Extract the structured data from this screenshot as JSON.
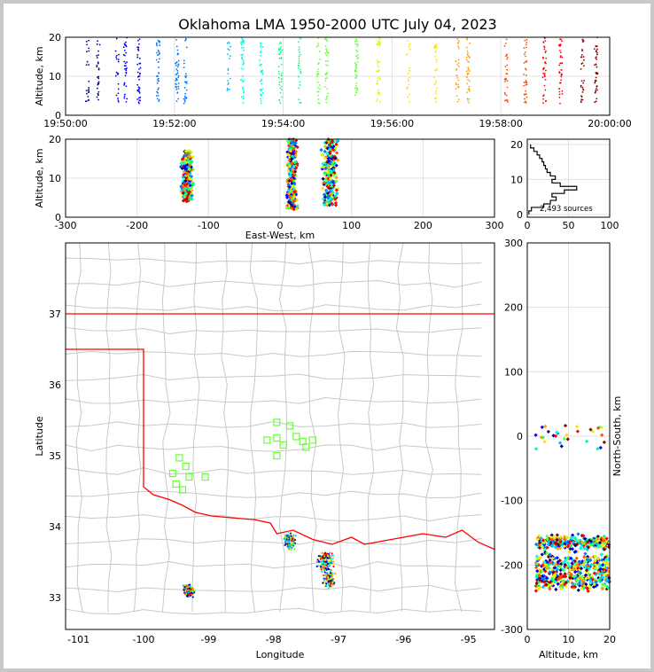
{
  "title": "Oklahoma LMA 1950-2000 UTC July 04, 2023",
  "colors": {
    "time_scale": [
      "#00008b",
      "#0000ff",
      "#0077ff",
      "#00bfff",
      "#00ffe0",
      "#00ff80",
      "#66ff33",
      "#c8ff00",
      "#ffe000",
      "#ffa000",
      "#ff5000",
      "#ff0000",
      "#8b0000"
    ],
    "state_border": "#ff0000",
    "county_lines": "#c8c8c8",
    "station_marker": "#66ff33",
    "grid": "#e0e0e0"
  },
  "chart_data": [
    {
      "panel": "altitude-time",
      "type": "scatter",
      "xlabel": "",
      "ylabel": "Altitude, km",
      "ylim": [
        0,
        20
      ],
      "yticks": [
        "0",
        "10",
        "20"
      ],
      "xticks": [
        "19:50:00",
        "19:52:00",
        "19:54:00",
        "19:56:00",
        "19:58:00",
        "20:00:00"
      ],
      "series": [
        {
          "x_minutes": [
            0.4,
            0.6,
            0.95,
            1.1,
            1.35,
            1.7,
            2.05,
            2.2,
            3.0,
            3.25,
            3.6,
            3.95,
            4.3,
            4.65,
            4.8,
            5.35,
            5.75,
            6.3,
            6.8,
            7.2,
            7.4,
            8.1,
            8.45,
            8.8,
            9.1,
            9.5,
            9.75
          ],
          "y_range_km": [
            3,
            20
          ]
        }
      ]
    },
    {
      "panel": "altitude-eastwest",
      "type": "scatter",
      "xlabel": "East-West, km",
      "ylabel": "Altitude, km",
      "xlim": [
        -300,
        300
      ],
      "ylim": [
        0,
        20
      ],
      "xticks": [
        "-300",
        "-200",
        "-100",
        "0",
        "100",
        "200",
        "300"
      ],
      "yticks": [
        "0",
        "10",
        "20"
      ],
      "clusters": [
        {
          "x_center": -130,
          "x_spread": 10,
          "y_min": 4,
          "y_max": 17
        },
        {
          "x_center": 17,
          "x_spread": 10,
          "y_min": 2,
          "y_max": 20
        },
        {
          "x_center": 70,
          "x_spread": 14,
          "y_min": 3,
          "y_max": 20
        }
      ]
    },
    {
      "panel": "altitude-histogram",
      "type": "line",
      "xlim": [
        0,
        100
      ],
      "ylim": [
        0,
        20
      ],
      "xticks": [
        "0",
        "50",
        "100"
      ],
      "yticks": [
        "0",
        "10",
        "20"
      ],
      "annotation": "2,493 sources",
      "altitude_km": [
        0.5,
        1.5,
        2.5,
        3.5,
        4.5,
        5.5,
        6.5,
        7.5,
        8.5,
        9.5,
        10.5,
        11.5,
        12.5,
        13.5,
        14.5,
        15.5,
        16.5,
        17.5,
        18.5,
        19.5
      ],
      "count": [
        2,
        5,
        20,
        28,
        35,
        30,
        45,
        60,
        40,
        30,
        34,
        28,
        24,
        22,
        20,
        18,
        15,
        12,
        8,
        4
      ]
    },
    {
      "panel": "plan-view",
      "type": "scatter",
      "xlabel": "Longitude",
      "ylabel": "Latitude",
      "xlim": [
        -101.2,
        -94.6
      ],
      "ylim": [
        32.55,
        38.0
      ],
      "xticks": [
        "-101",
        "-100",
        "-99",
        "-98",
        "-97",
        "-96",
        "-95"
      ],
      "yticks": [
        "33",
        "34",
        "35",
        "36",
        "37"
      ],
      "stations": [
        [
          -99.45,
          34.97
        ],
        [
          -99.35,
          34.85
        ],
        [
          -99.55,
          34.75
        ],
        [
          -99.3,
          34.7
        ],
        [
          -99.05,
          34.7
        ],
        [
          -99.5,
          34.6
        ],
        [
          -99.4,
          34.52
        ],
        [
          -97.95,
          35.47
        ],
        [
          -97.75,
          35.42
        ],
        [
          -98.1,
          35.22
        ],
        [
          -97.95,
          35.25
        ],
        [
          -97.65,
          35.27
        ],
        [
          -97.55,
          35.2
        ],
        [
          -97.4,
          35.22
        ],
        [
          -97.85,
          35.15
        ],
        [
          -97.5,
          35.12
        ],
        [
          -97.95,
          35.0
        ]
      ],
      "clusters": [
        {
          "lon": -97.75,
          "lat": 33.8,
          "spread": 0.12
        },
        {
          "lon": -97.2,
          "lat": 33.5,
          "spread": 0.18
        },
        {
          "lon": -97.15,
          "lat": 33.25,
          "spread": 0.12
        },
        {
          "lon": -99.3,
          "lat": 33.1,
          "spread": 0.1
        }
      ]
    },
    {
      "panel": "northsouth-altitude",
      "type": "scatter",
      "xlabel": "Altitude, km",
      "ylabel": "North-South, km",
      "xlim": [
        0,
        20
      ],
      "ylim": [
        -300,
        300
      ],
      "xticks": [
        "0",
        "10",
        "20"
      ],
      "yticks": [
        "-300",
        "-200",
        "-100",
        "0",
        "100",
        "200",
        "300"
      ],
      "clusters": [
        {
          "y_center": -165,
          "y_spread": 15
        },
        {
          "y_center": -200,
          "y_spread": 25
        },
        {
          "y_center": -225,
          "y_spread": 20
        },
        {
          "y_center": 0,
          "y_spread": 30
        }
      ]
    }
  ]
}
